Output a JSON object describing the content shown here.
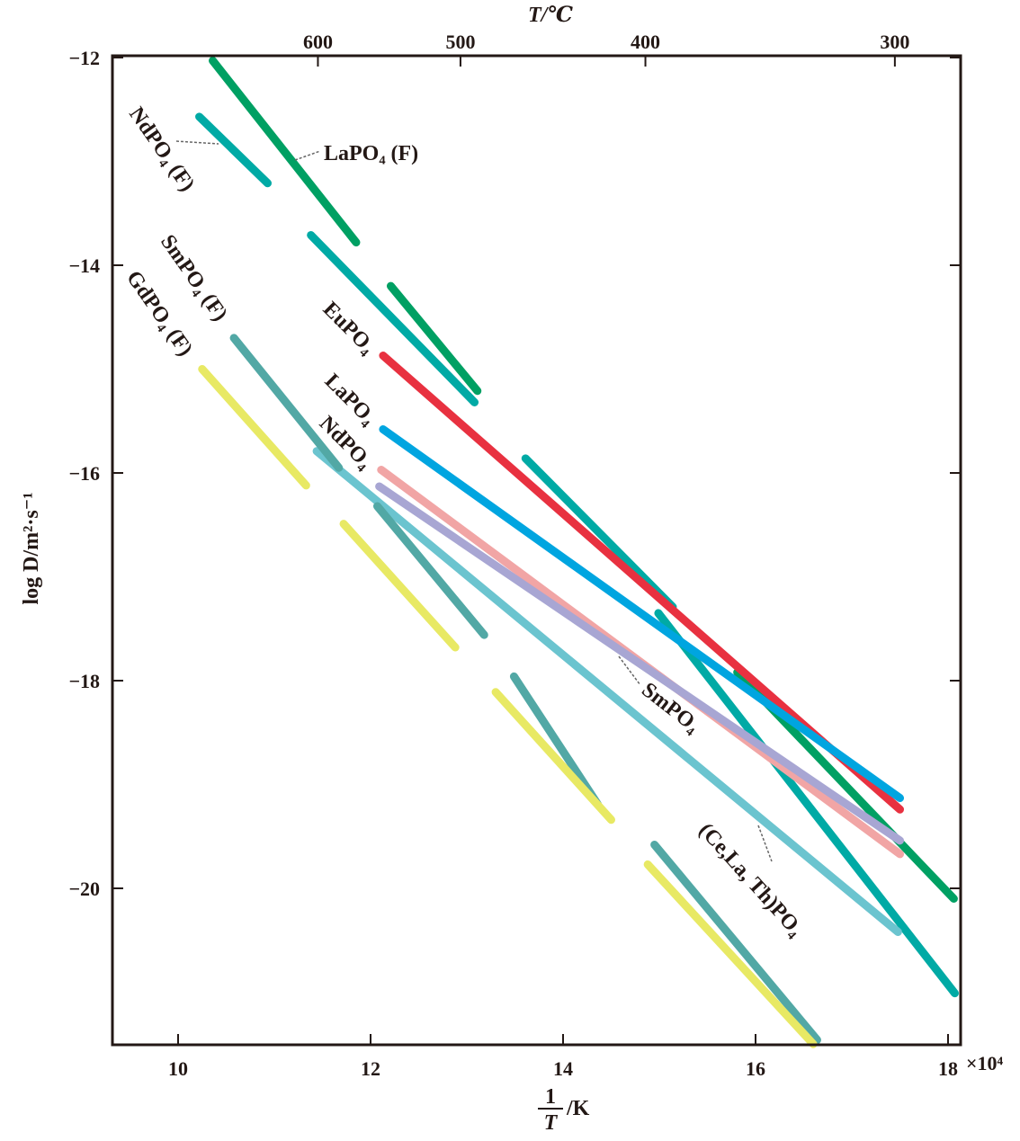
{
  "chart_data": {
    "type": "line",
    "title": "",
    "xlabel_num": "1",
    "xlabel_den": "T",
    "xlabel_unit": "/K",
    "x_multiplier": "×10⁴",
    "ylabel": "log D/m²·s⁻¹",
    "top_xlabel": "T/℃",
    "xlim": [
      9.32,
      18.13
    ],
    "ylim": [
      -21.5,
      -11.95
    ],
    "grid": false,
    "x_ticks": [
      10,
      12,
      14,
      16,
      18
    ],
    "x_tick_labels": [
      "10",
      "12",
      "14",
      "16",
      "18"
    ],
    "y_ticks": [
      -12,
      -14,
      -16,
      -18,
      -20
    ],
    "y_tick_labels": [
      "−12",
      "−14",
      "−16",
      "−18",
      "−20"
    ],
    "top_ticks_celsius": [
      600,
      500,
      400,
      300
    ],
    "top_tick_labels": [
      "600",
      "500",
      "400",
      "300"
    ],
    "series": [
      {
        "name": "LaPO₄ (F)",
        "color": "#00a063",
        "segments": [
          [
            [
              10.36,
              -12.03
            ],
            [
              11.85,
              -13.78
            ]
          ],
          [
            [
              12.21,
              -14.2
            ],
            [
              13.11,
              -15.21
            ]
          ],
          [
            [
              15.81,
              -17.92
            ],
            [
              18.06,
              -20.1
            ]
          ]
        ]
      },
      {
        "name": "NdPO₄ (F)",
        "color": "#00aaa5",
        "segments": [
          [
            [
              10.22,
              -12.57
            ],
            [
              10.93,
              -13.21
            ]
          ],
          [
            [
              11.38,
              -13.71
            ],
            [
              13.08,
              -15.32
            ]
          ],
          [
            [
              13.61,
              -15.86
            ],
            [
              15.14,
              -17.29
            ]
          ],
          [
            [
              14.99,
              -17.35
            ],
            [
              18.07,
              -21.01
            ]
          ]
        ]
      },
      {
        "name": "EuPO₄",
        "color": "#e83140",
        "segments": [
          [
            [
              12.13,
              -14.87
            ],
            [
              17.5,
              -19.24
            ]
          ]
        ]
      },
      {
        "name": "LaPO₄",
        "color": "#00a5e0",
        "segments": [
          [
            [
              12.13,
              -15.58
            ],
            [
              17.5,
              -19.13
            ]
          ]
        ]
      },
      {
        "name": "NdPO₄",
        "color": "#f1a5a5",
        "segments": [
          [
            [
              12.11,
              -15.97
            ],
            [
              17.5,
              -19.67
            ]
          ]
        ]
      },
      {
        "name": "SmPO₄",
        "color": "#a8a6d3",
        "segments": [
          [
            [
              12.09,
              -16.13
            ],
            [
              17.5,
              -19.54
            ]
          ]
        ]
      },
      {
        "name": "(Ce,La, Th)PO₄",
        "color": "#6bc4cf",
        "segments": [
          [
            [
              11.44,
              -15.79
            ],
            [
              17.48,
              -20.42
            ]
          ]
        ]
      },
      {
        "name": "SmPO₄ (F)",
        "color": "#52a8a5",
        "segments": [
          [
            [
              10.58,
              -14.7
            ],
            [
              11.67,
              -15.95
            ]
          ],
          [
            [
              12.07,
              -16.32
            ],
            [
              13.18,
              -17.56
            ]
          ],
          [
            [
              13.49,
              -17.96
            ],
            [
              14.36,
              -19.19
            ]
          ],
          [
            [
              14.95,
              -19.58
            ],
            [
              16.64,
              -21.46
            ]
          ]
        ]
      },
      {
        "name": "GdPO₄ (F)",
        "color": "#e8e964",
        "segments": [
          [
            [
              10.25,
              -15.0
            ],
            [
              11.33,
              -16.12
            ]
          ],
          [
            [
              11.72,
              -16.49
            ],
            [
              12.88,
              -17.68
            ]
          ],
          [
            [
              13.3,
              -18.11
            ],
            [
              14.5,
              -19.34
            ]
          ],
          [
            [
              14.88,
              -19.77
            ],
            [
              16.6,
              -21.5
            ]
          ]
        ]
      }
    ]
  }
}
